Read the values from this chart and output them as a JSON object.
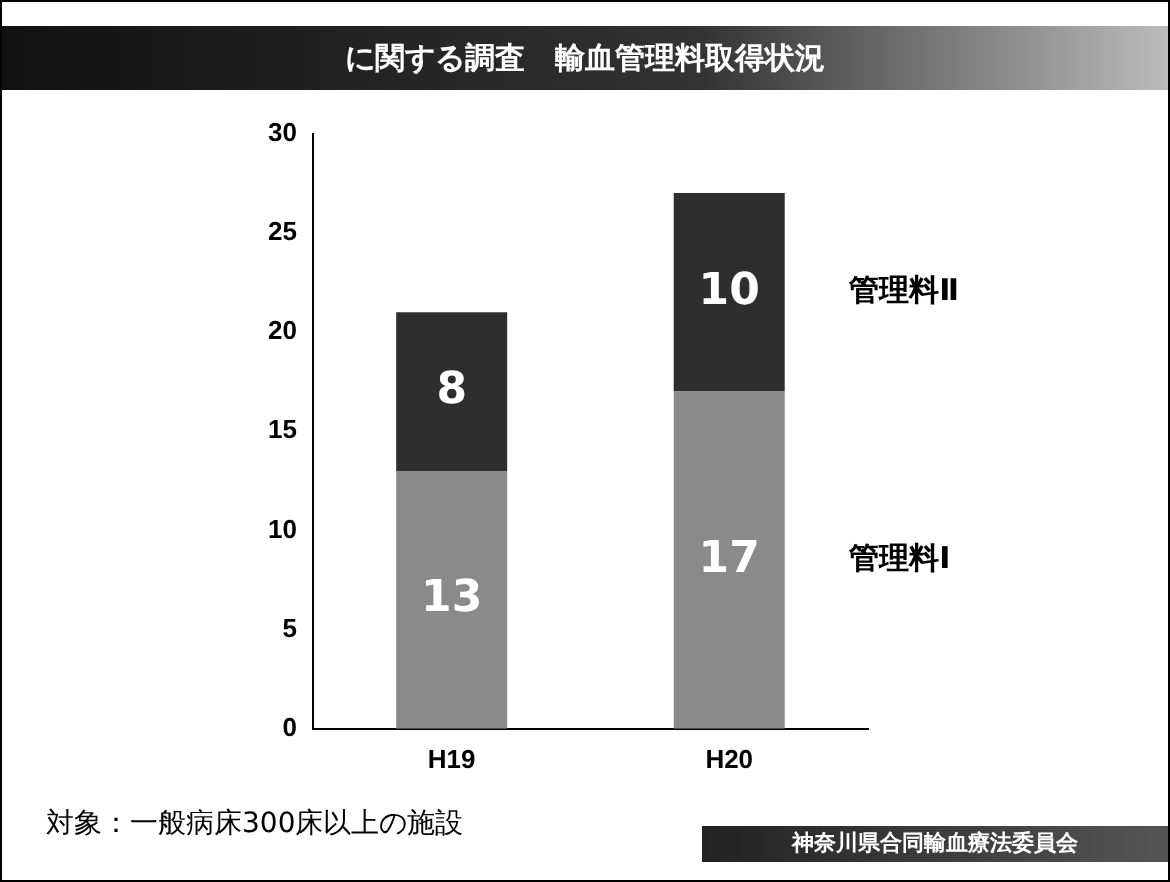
{
  "chart_data": {
    "type": "bar",
    "title": "に関する調査　輸血管理料取得状況",
    "categories": [
      "H19",
      "H20"
    ],
    "stacked": true,
    "data_labels": true,
    "series": [
      {
        "name": "管理料Ⅰ",
        "color": "#8a8a8a",
        "values": [
          13,
          17
        ]
      },
      {
        "name": "管理料Ⅱ",
        "color": "#2e2e2e",
        "values": [
          8,
          10
        ]
      }
    ],
    "ylim": [
      0,
      30
    ],
    "yticks": [
      0,
      5,
      10,
      15,
      20,
      25,
      30
    ],
    "grid": false,
    "annotations": [
      "対象：一般病床300床以上の施設",
      "神奈川県合同輸血療法委員会"
    ]
  }
}
